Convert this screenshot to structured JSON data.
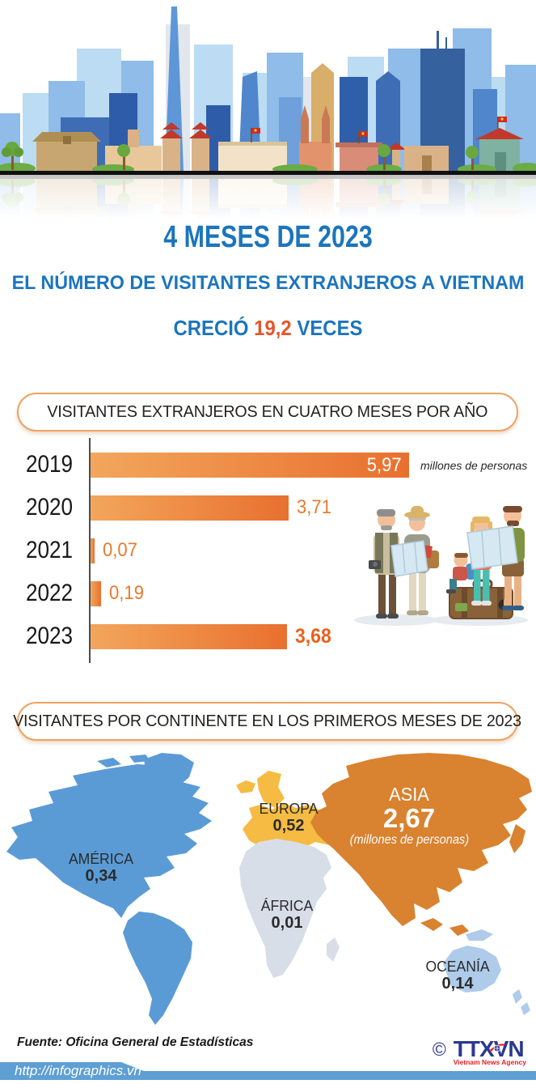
{
  "header": {
    "title": "4 MESES DE 2023",
    "subtitle": "EL NÚMERO DE VISITANTES EXTRANJEROS A VIETNAM",
    "growth_prefix": "CRECIÓ ",
    "growth_value": "19,2",
    "growth_suffix": " VECES"
  },
  "colors": {
    "blue": "#1B75BC",
    "accent_orange": "#E8542B",
    "pill_border": "#EFA361",
    "text_dark": "#26211F",
    "bottom_bar": "#5E9FD4",
    "logo_navy": "#2B3990",
    "logo_red": "#EC1C24"
  },
  "chart_data": [
    {
      "type": "bar",
      "orientation": "horizontal",
      "title": "VISITANTES EXTRANJEROS EN CUATRO MESES POR AÑO",
      "categories": [
        "2019",
        "2020",
        "2021",
        "2022",
        "2023"
      ],
      "values": [
        5.97,
        3.71,
        0.07,
        0.19,
        3.68
      ],
      "value_labels": [
        "5,97",
        "3,71",
        "0,07",
        "0,19",
        "3,68"
      ],
      "value_styles": [
        "inside",
        "outside",
        "outside",
        "outside",
        "outside_bold"
      ],
      "unit_label": "millones  de personas",
      "xlim": [
        0,
        6.05
      ],
      "grid": false,
      "colors": {
        "bar_gradient_start": "#F3A65C",
        "bar_gradient_end": "#E8702E",
        "inside_value_color": "#FFFFFF",
        "value_color": "#E87A30",
        "value_bold_color": "#E8611C",
        "axis_color": "#4D4D4F"
      }
    },
    {
      "type": "map",
      "title": "VISITANTES POR CONTINENTE EN LOS PRIMEROS MESES DE 2023",
      "unit_note": "(millones de personas)",
      "regions": [
        {
          "name": "AMÉRICA",
          "value": 0.34,
          "value_label": "0,34",
          "color": "#5B9BD5"
        },
        {
          "name": "EUROPA",
          "value": 0.52,
          "value_label": "0,52",
          "color": "#F5BB42"
        },
        {
          "name": "ASIA",
          "value": 2.67,
          "value_label": "2,67",
          "color": "#D9822F"
        },
        {
          "name": "ÁFRICA",
          "value": 0.01,
          "value_label": "0,01",
          "color": "#D8DEE8"
        },
        {
          "name": "OCEANÍA",
          "value": 0.14,
          "value_label": "0,14",
          "color": "#AECBEA"
        }
      ]
    }
  ],
  "footer": {
    "source": "Fuente: Oficina General de Estadísticas",
    "url": "http://infographics.vn",
    "logo": {
      "copyright": "©",
      "text": "TTXVN",
      "subtext": "Vietnam News Agency"
    }
  }
}
